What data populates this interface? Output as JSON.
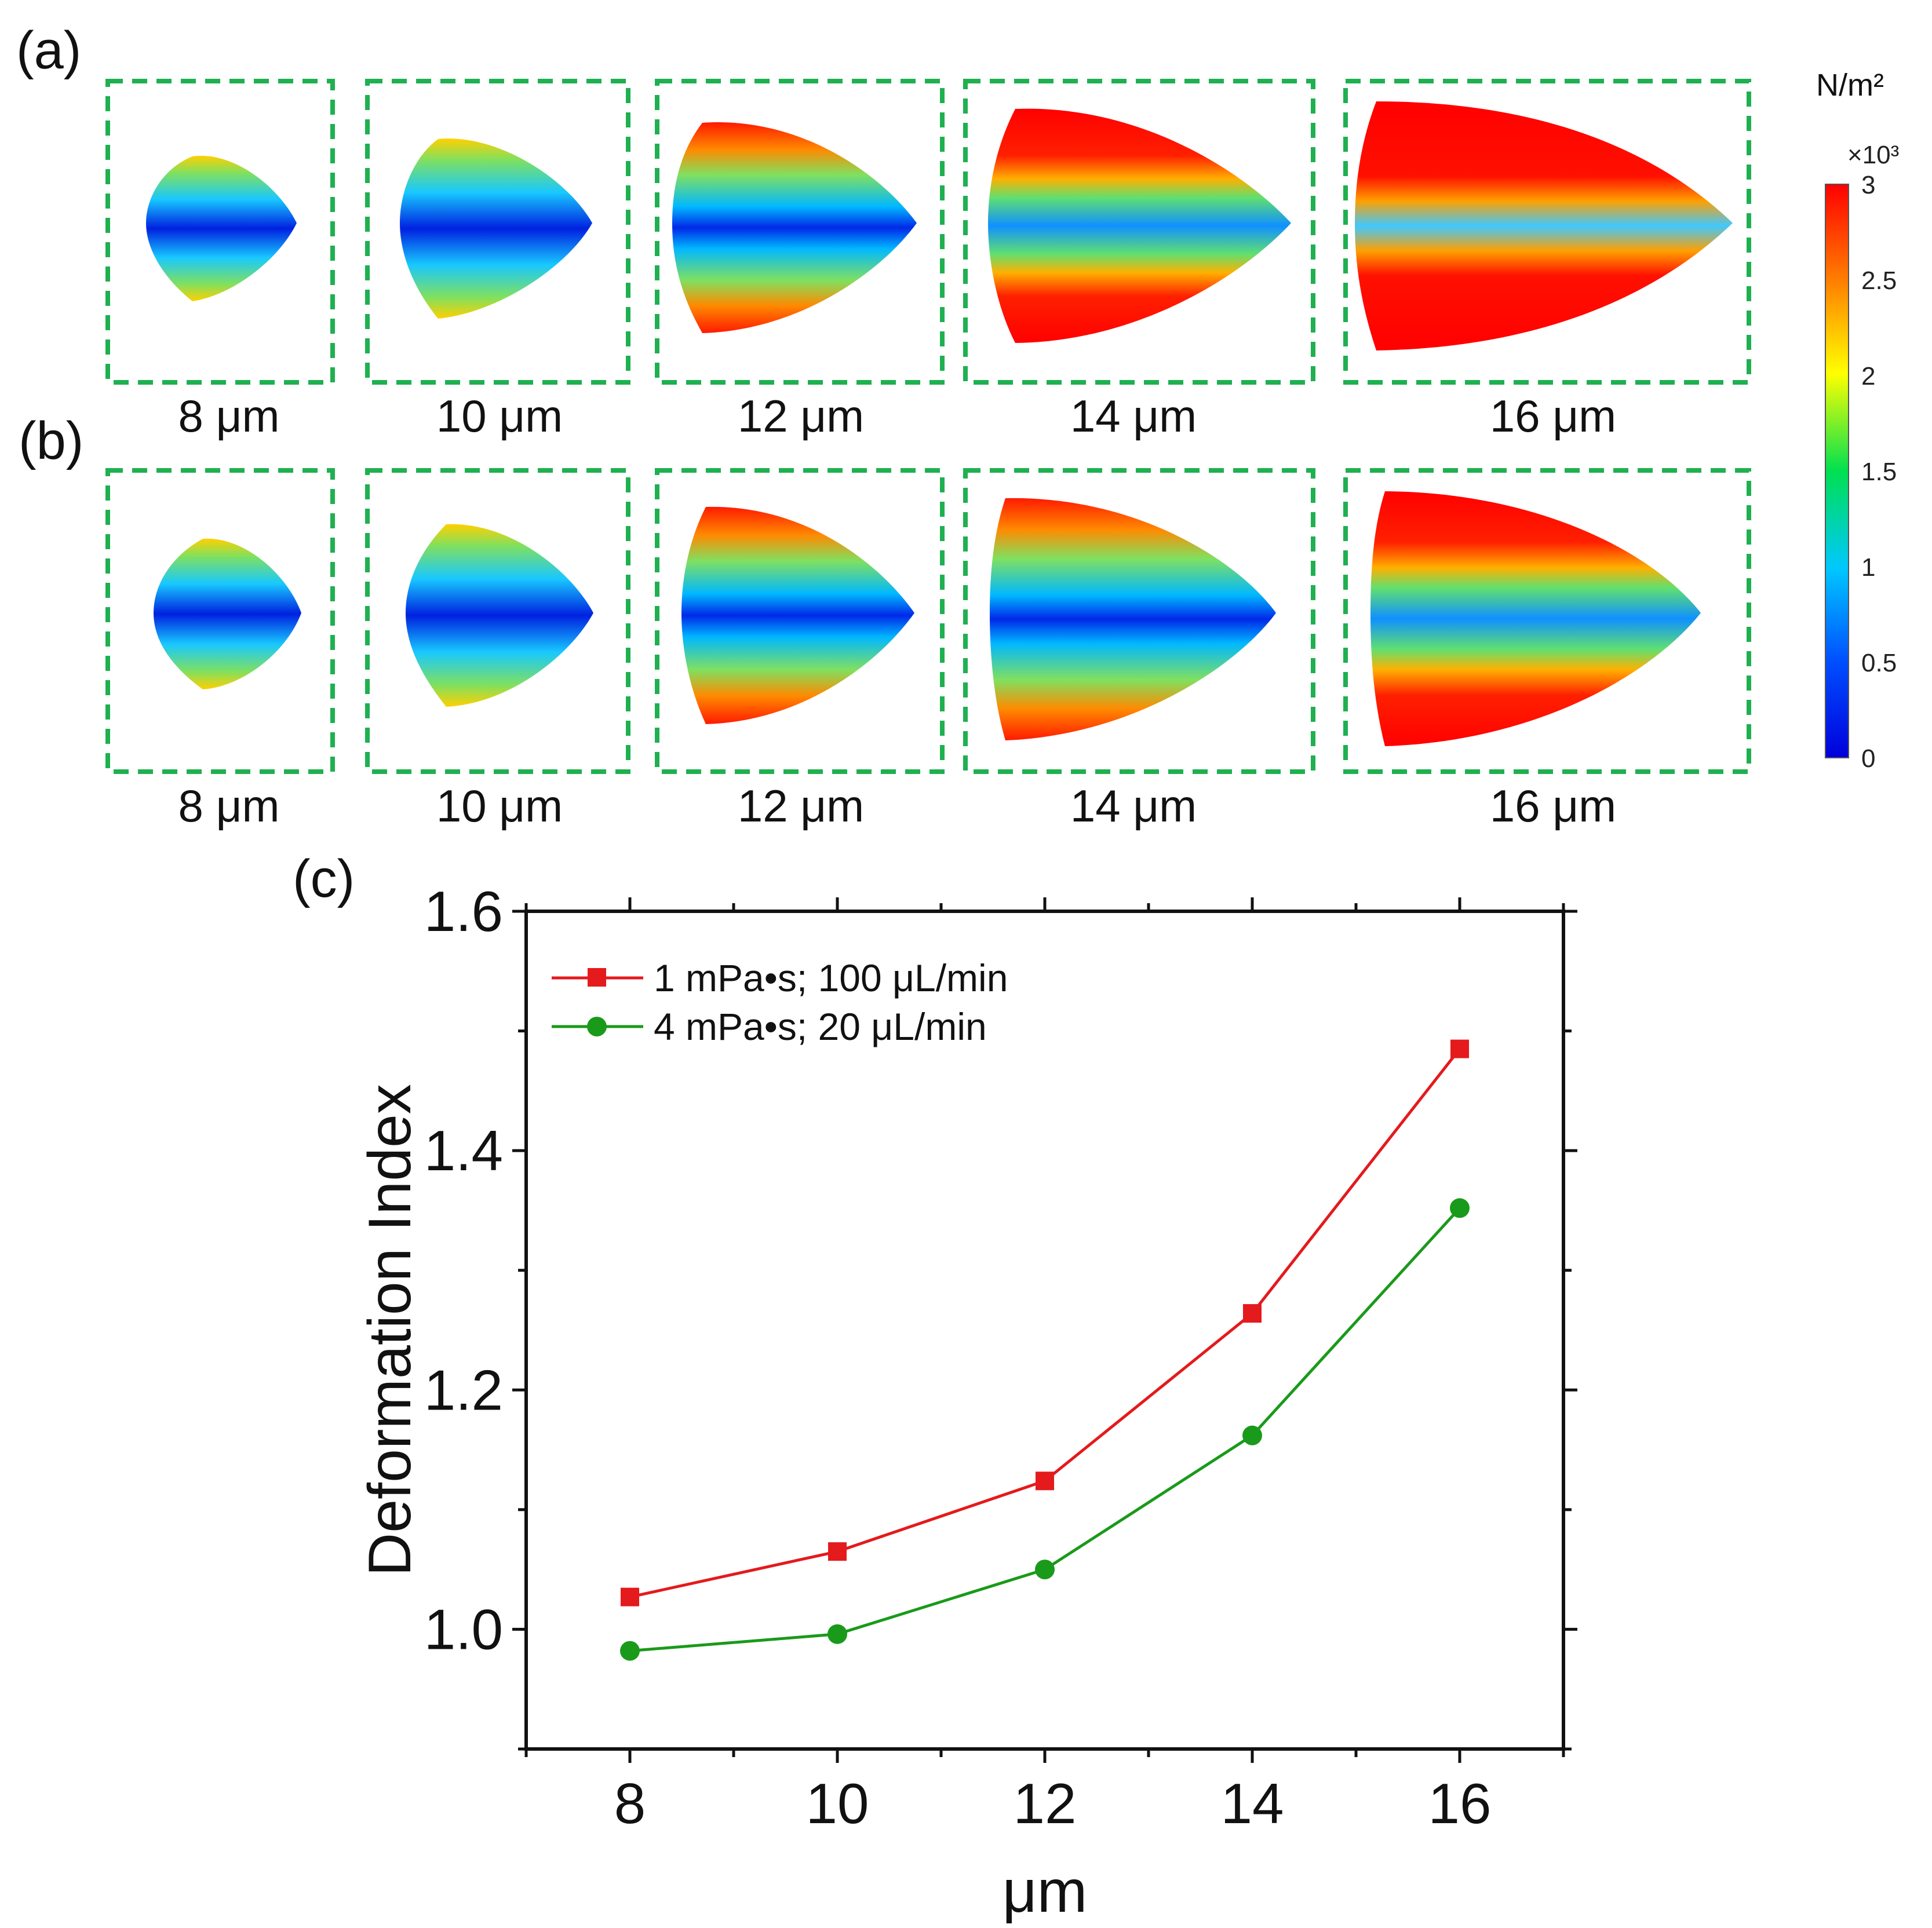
{
  "panels": {
    "a": {
      "letter": "(a)",
      "labels": [
        "8 μm",
        "10 μm",
        "12 μm",
        "14 μm",
        "16 μm"
      ]
    },
    "b": {
      "letter": "(b)",
      "labels": [
        "8 μm",
        "10 μm",
        "12 μm",
        "14 μm",
        "16 μm"
      ]
    },
    "c": {
      "letter": "(c)"
    }
  },
  "colorbar": {
    "unit": "N/m²",
    "multiplier": "×10³",
    "ticks": [
      "3",
      "2.5",
      "2",
      "1.5",
      "1",
      "0.5",
      "0"
    ],
    "colors": [
      "#ff0000",
      "#ff8000",
      "#ffff00",
      "#00e050",
      "#00c8ff",
      "#0050ff",
      "#0000dc"
    ]
  },
  "chart_data": {
    "type": "line",
    "title": "",
    "xlabel": "μm",
    "ylabel": "Deformation Index",
    "x": [
      8,
      10,
      12,
      14,
      16
    ],
    "xlim": [
      7,
      17
    ],
    "ylim": [
      0.9,
      1.6
    ],
    "xticks": [
      "8",
      "10",
      "12",
      "14",
      "16"
    ],
    "yticks": [
      "1.0",
      "1.2",
      "1.4",
      "1.6"
    ],
    "legend_position": "top-left",
    "series": [
      {
        "name": "1 mPa•s; 100 μL/min",
        "color": "#e41a1c",
        "marker": "square",
        "values": [
          1.027,
          1.065,
          1.124,
          1.264,
          1.485
        ]
      },
      {
        "name": "4 mPa•s; 20 μL/min",
        "color": "#1a9a1a",
        "marker": "circle",
        "values": [
          0.982,
          0.996,
          1.05,
          1.162,
          1.352
        ]
      }
    ]
  }
}
